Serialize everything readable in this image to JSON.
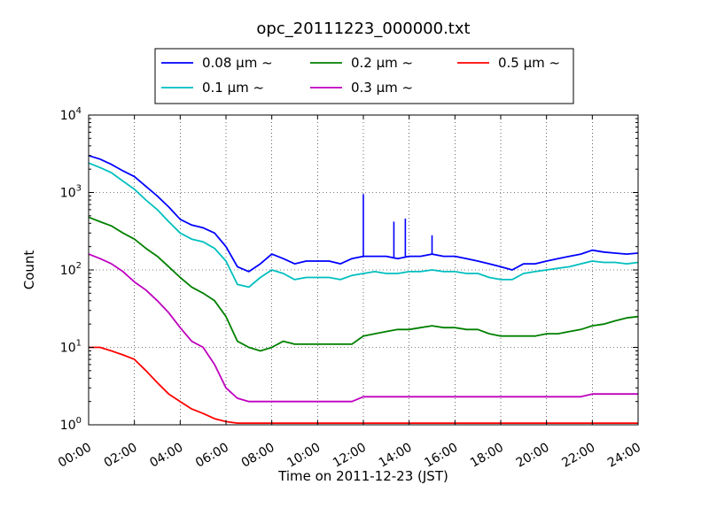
{
  "chart_data": {
    "type": "line",
    "title": "opc_20111223_000000.txt",
    "xlabel": "Time on 2011-12-23 (JST)",
    "ylabel": "Count",
    "yscale": "log",
    "ylim": [
      1,
      10000
    ],
    "xlim": [
      "00:00",
      "24:00"
    ],
    "x_ticks": [
      "00:00",
      "02:00",
      "04:00",
      "06:00",
      "08:00",
      "10:00",
      "12:00",
      "14:00",
      "16:00",
      "18:00",
      "20:00",
      "22:00",
      "24:00"
    ],
    "y_ticks": [
      {
        "value": 1,
        "base": "10",
        "exp": "0"
      },
      {
        "value": 10,
        "base": "10",
        "exp": "1"
      },
      {
        "value": 100,
        "base": "10",
        "exp": "2"
      },
      {
        "value": 1000,
        "base": "10",
        "exp": "3"
      },
      {
        "value": 10000,
        "base": "10",
        "exp": "4"
      }
    ],
    "grid": true,
    "legend_position": "top-center",
    "x": [
      "00:00",
      "00:30",
      "01:00",
      "01:30",
      "02:00",
      "02:30",
      "03:00",
      "03:30",
      "04:00",
      "04:30",
      "05:00",
      "05:30",
      "06:00",
      "06:30",
      "07:00",
      "07:30",
      "08:00",
      "08:30",
      "09:00",
      "09:30",
      "10:00",
      "10:30",
      "11:00",
      "11:30",
      "12:00",
      "12:30",
      "13:00",
      "13:30",
      "14:00",
      "14:30",
      "15:00",
      "15:30",
      "16:00",
      "16:30",
      "17:00",
      "17:30",
      "18:00",
      "18:30",
      "19:00",
      "19:30",
      "20:00",
      "20:30",
      "21:00",
      "21:30",
      "22:00",
      "22:30",
      "23:00",
      "23:30",
      "24:00"
    ],
    "series": [
      {
        "name": "0.08 μm ~",
        "color": "#0000ff",
        "values": [
          3000,
          2700,
          2300,
          1900,
          1600,
          1200,
          900,
          650,
          450,
          380,
          350,
          300,
          200,
          110,
          95,
          120,
          160,
          140,
          120,
          130,
          130,
          130,
          120,
          140,
          150,
          150,
          150,
          140,
          150,
          150,
          160,
          150,
          150,
          140,
          130,
          120,
          110,
          100,
          120,
          120,
          130,
          140,
          150,
          160,
          180,
          170,
          165,
          160,
          165
        ]
      },
      {
        "name": "0.1 μm ~",
        "color": "#00bfbf",
        "values": [
          2400,
          2100,
          1800,
          1400,
          1100,
          800,
          600,
          420,
          300,
          250,
          230,
          190,
          130,
          65,
          60,
          80,
          100,
          90,
          75,
          80,
          80,
          80,
          75,
          85,
          90,
          95,
          90,
          90,
          95,
          95,
          100,
          95,
          95,
          90,
          90,
          80,
          75,
          75,
          90,
          95,
          100,
          105,
          110,
          120,
          130,
          125,
          125,
          120,
          125
        ]
      },
      {
        "name": "0.2 μm ~",
        "color": "#008000",
        "values": [
          480,
          420,
          370,
          300,
          250,
          190,
          150,
          110,
          80,
          60,
          50,
          40,
          25,
          12,
          10,
          9,
          10,
          12,
          11,
          11,
          11,
          11,
          11,
          11,
          14,
          15,
          16,
          17,
          17,
          18,
          19,
          18,
          18,
          17,
          17,
          15,
          14,
          14,
          14,
          14,
          15,
          15,
          16,
          17,
          19,
          20,
          22,
          24,
          25
        ]
      },
      {
        "name": "0.3 μm ~",
        "color": "#bf00bf",
        "values": [
          160,
          140,
          120,
          95,
          70,
          55,
          40,
          28,
          18,
          12,
          10,
          6,
          3,
          2.2,
          2,
          2,
          2,
          2,
          2,
          2,
          2,
          2,
          2,
          2,
          2.3,
          2.3,
          2.3,
          2.3,
          2.3,
          2.3,
          2.3,
          2.3,
          2.3,
          2.3,
          2.3,
          2.3,
          2.3,
          2.3,
          2.3,
          2.3,
          2.3,
          2.3,
          2.3,
          2.3,
          2.5,
          2.5,
          2.5,
          2.5,
          2.5
        ]
      },
      {
        "name": "0.5 μm ~",
        "color": "#ff0000",
        "values": [
          10,
          10,
          9,
          8,
          7,
          5,
          3.5,
          2.5,
          2,
          1.6,
          1.4,
          1.2,
          1.1,
          1.05,
          1.05,
          1.05,
          1.05,
          1.05,
          1.05,
          1.05,
          1.05,
          1.05,
          1.05,
          1.05,
          1.05,
          1.05,
          1.05,
          1.05,
          1.05,
          1.05,
          1.05,
          1.05,
          1.05,
          1.05,
          1.05,
          1.05,
          1.05,
          1.05,
          1.05,
          1.05,
          1.05,
          1.05,
          1.05,
          1.05,
          1.05,
          1.05,
          1.05,
          1.05,
          1.05
        ]
      }
    ],
    "spikes": [
      {
        "x": "12:00",
        "series": "0.08 μm ~",
        "value": 950
      },
      {
        "x": "13:20",
        "series": "0.08 μm ~",
        "value": 420
      },
      {
        "x": "13:50",
        "series": "0.08 μm ~",
        "value": 460
      },
      {
        "x": "15:00",
        "series": "0.08 μm ~",
        "value": 280
      }
    ]
  }
}
